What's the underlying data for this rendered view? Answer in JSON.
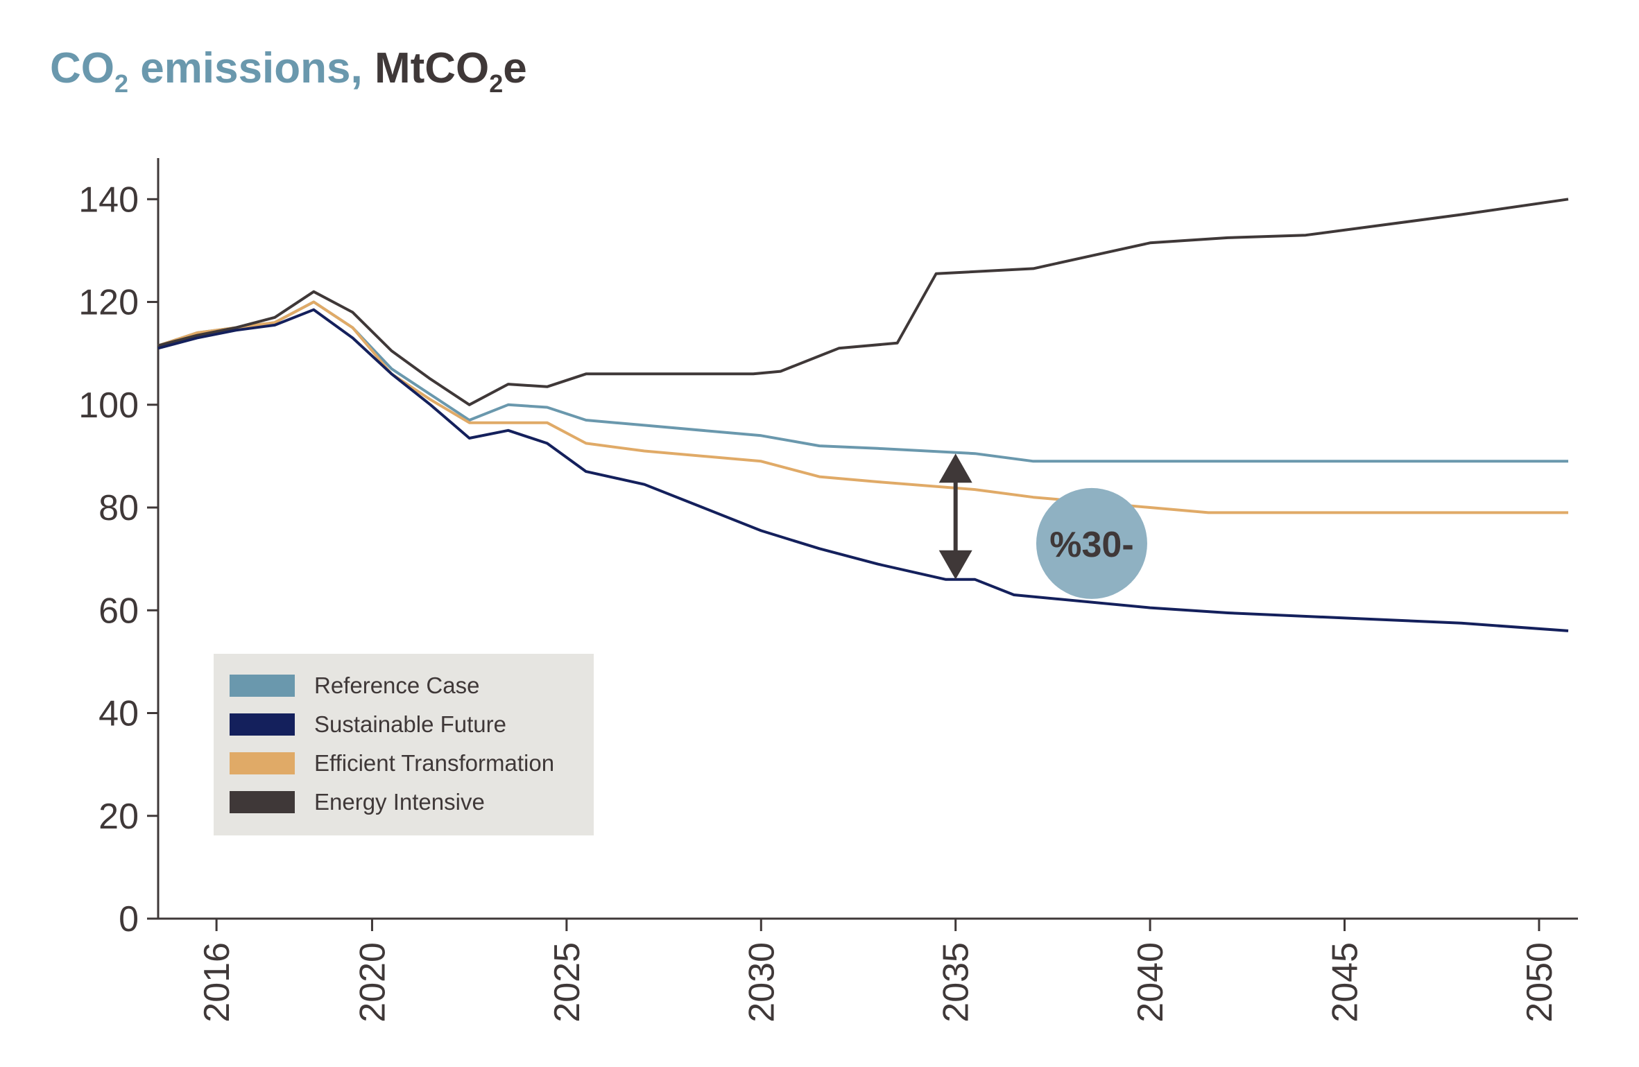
{
  "chart_data": {
    "type": "line",
    "title": {
      "part1": "CO",
      "part1_sub": "2",
      "part1_rest": " emissions,",
      "part2": " MtCO",
      "part2_sub": "2",
      "part2_rest": "e"
    },
    "xlabel": "",
    "ylabel": "",
    "xlim": [
      2014.5,
      2051
    ],
    "ylim": [
      0,
      148
    ],
    "x_ticks": [
      2016,
      2020,
      2025,
      2030,
      2035,
      2040,
      2045,
      2050
    ],
    "y_ticks": [
      0,
      20,
      40,
      60,
      80,
      100,
      120,
      140
    ],
    "grid": false,
    "legend_position": "bottom-left",
    "series": [
      {
        "name": "Reference Case",
        "color": "#6a98ad",
        "points": [
          [
            2014.5,
            111.5
          ],
          [
            2015.5,
            114
          ],
          [
            2016.5,
            115
          ],
          [
            2017.5,
            116
          ],
          [
            2018.5,
            120
          ],
          [
            2019.5,
            115
          ],
          [
            2020.5,
            107
          ],
          [
            2021.5,
            102
          ],
          [
            2022.5,
            97
          ],
          [
            2023.5,
            100
          ],
          [
            2024.5,
            99.5
          ],
          [
            2025.5,
            97
          ],
          [
            2027,
            96
          ],
          [
            2030,
            94
          ],
          [
            2031.5,
            92
          ],
          [
            2033,
            91.5
          ],
          [
            2035.5,
            90.5
          ],
          [
            2037,
            89
          ],
          [
            2040,
            89
          ],
          [
            2045,
            89
          ],
          [
            2050.75,
            89
          ]
        ]
      },
      {
        "name": "Sustainable Future",
        "color": "#14205c",
        "points": [
          [
            2014.5,
            111
          ],
          [
            2015.5,
            113
          ],
          [
            2016.5,
            114.5
          ],
          [
            2017.5,
            115.5
          ],
          [
            2018.5,
            118.5
          ],
          [
            2019.5,
            113
          ],
          [
            2020.5,
            106
          ],
          [
            2021.5,
            100
          ],
          [
            2022.5,
            93.5
          ],
          [
            2023.5,
            95
          ],
          [
            2024.5,
            92.5
          ],
          [
            2025.5,
            87
          ],
          [
            2027,
            84.5
          ],
          [
            2028.5,
            80
          ],
          [
            2030,
            75.5
          ],
          [
            2031.5,
            72
          ],
          [
            2033,
            69
          ],
          [
            2034.75,
            66
          ],
          [
            2035.5,
            66
          ],
          [
            2036.5,
            63
          ],
          [
            2040,
            60.5
          ],
          [
            2042,
            59.5
          ],
          [
            2045,
            58.5
          ],
          [
            2048,
            57.5
          ],
          [
            2050.75,
            56
          ]
        ]
      },
      {
        "name": "Efficient Transformation",
        "color": "#e0aa67",
        "points": [
          [
            2014.5,
            111.5
          ],
          [
            2015.5,
            114
          ],
          [
            2016.5,
            115
          ],
          [
            2017.5,
            116
          ],
          [
            2018.5,
            120
          ],
          [
            2019.5,
            115
          ],
          [
            2020.5,
            106
          ],
          [
            2021.5,
            101
          ],
          [
            2022.5,
            96.5
          ],
          [
            2023.5,
            96.5
          ],
          [
            2024.5,
            96.5
          ],
          [
            2025.5,
            92.5
          ],
          [
            2027,
            91
          ],
          [
            2030,
            89
          ],
          [
            2031.5,
            86
          ],
          [
            2033,
            85
          ],
          [
            2035.5,
            83.5
          ],
          [
            2037,
            82
          ],
          [
            2040,
            80
          ],
          [
            2041.5,
            79
          ],
          [
            2045,
            79
          ],
          [
            2050.75,
            79
          ]
        ]
      },
      {
        "name": "Energy Intensive",
        "color": "#3f3838",
        "points": [
          [
            2014.5,
            111.5
          ],
          [
            2015.5,
            113.5
          ],
          [
            2016.5,
            115
          ],
          [
            2017.5,
            117
          ],
          [
            2018.5,
            122
          ],
          [
            2019.5,
            118
          ],
          [
            2020.5,
            110.5
          ],
          [
            2021.5,
            105
          ],
          [
            2022.5,
            100
          ],
          [
            2023.5,
            104
          ],
          [
            2024.5,
            103.5
          ],
          [
            2025.5,
            106
          ],
          [
            2028,
            106
          ],
          [
            2029.8,
            106
          ],
          [
            2030.5,
            106.5
          ],
          [
            2032,
            111
          ],
          [
            2033.5,
            112
          ],
          [
            2034.5,
            125.5
          ],
          [
            2037,
            126.5
          ],
          [
            2038.5,
            129
          ],
          [
            2040,
            131.5
          ],
          [
            2042,
            132.5
          ],
          [
            2044,
            133
          ],
          [
            2046,
            135
          ],
          [
            2048,
            137
          ],
          [
            2050.75,
            140
          ]
        ]
      }
    ],
    "annotation": {
      "text": "%30-",
      "x": 2035,
      "from": 90.5,
      "to": 66,
      "badge_x": 2038.5,
      "badge_y": 73,
      "arrow_color": "#3f3838",
      "badge_color": "#8fb1c2"
    },
    "legend_background": "#e6e5e1"
  }
}
